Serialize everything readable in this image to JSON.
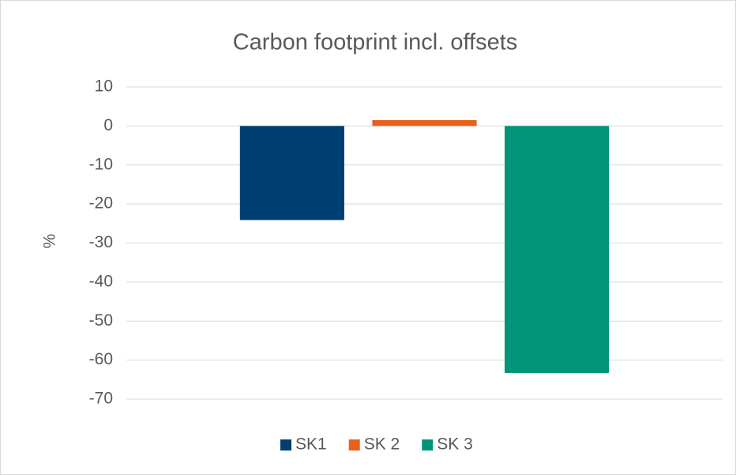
{
  "chart_data": {
    "type": "bar",
    "title": "Carbon footprint incl. offsets",
    "y_label": "%",
    "categories": [
      null
    ],
    "series": [
      {
        "name": "SK1",
        "color": "#003f72",
        "values": [
          -24.1
        ]
      },
      {
        "name": "SK 2",
        "color": "#e8601c",
        "values": [
          1.5
        ]
      },
      {
        "name": "SK 3",
        "color": "#009478",
        "values": [
          -63.3
        ]
      }
    ],
    "ylim": [
      -70,
      10
    ],
    "yticks": [
      -70,
      -60,
      -50,
      -40,
      -30,
      -20,
      -10,
      0,
      10
    ],
    "grid": true,
    "legend": "bottom"
  }
}
